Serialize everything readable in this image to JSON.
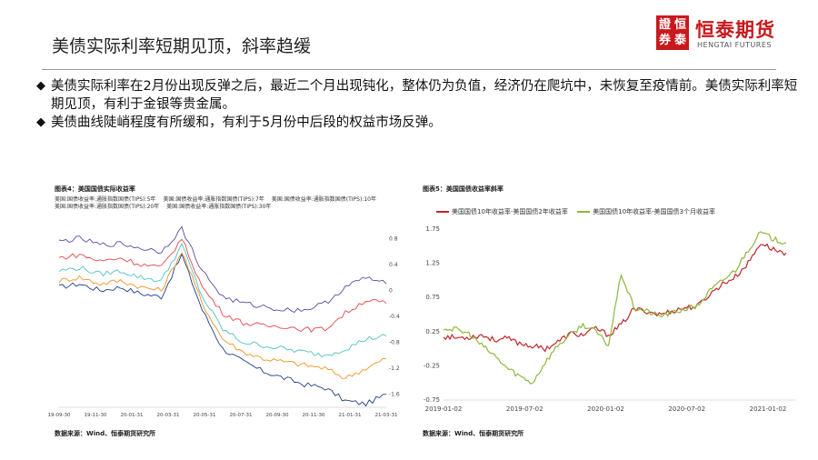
{
  "slide": {
    "title": "美债实际利率短期见顶，斜率趋缓",
    "bullets": [
      "美债实际利率在2月份出现反弹之后，最近二个月出现钝化，整体仍为负值，经济仍在爬坑中，未恢复至疫情前。美债实际利率短期见顶，有利于金银等贵金属。",
      "美债曲线陡峭程度有所缓和，有利于5月份中后段的权益市场反弹。"
    ],
    "bullet_mark": "◆"
  },
  "logo": {
    "seal_chars": [
      "證",
      "恒",
      "券",
      "泰"
    ],
    "name": "恒泰期货",
    "sub": "HENGTAI FUTURES",
    "color": "#c8191d"
  },
  "chart_data": [
    {
      "type": "line",
      "title": "图表4：美国国债实际收益率",
      "source": "数据来源：Wind、恒泰期货研究所",
      "legend": [
        "美国:国债收益率:通胀指数国债(TIPS):5年",
        "美国:国债收益率:通胀指数国债(TIPS):7年",
        "美国:国债收益率:通胀指数国债(TIPS):10年",
        "美国:国债收益率:通胀指数国债(TIPS):20年",
        "美国:国债收益率:通胀指数国债(TIPS):30年"
      ],
      "x_ticks": [
        "19-09-30",
        "19-11-30",
        "20-01-31",
        "20-03-31",
        "20-05-31",
        "20-07-31",
        "20-09-30",
        "20-11-30",
        "21-01-31",
        "21-03-31"
      ],
      "y_right_ticks": [
        "0.8",
        "0.4",
        "0",
        "-0.4",
        "-0.8",
        "-1.2",
        "-1.6"
      ],
      "y_right_range": [
        -1.8,
        1.0
      ],
      "series": [
        {
          "color": "#1f3c88",
          "values": [
            0.05,
            0.1,
            0.0,
            0.05,
            -0.05,
            -0.1,
            0.55,
            -0.3,
            -0.9,
            -1.1,
            -1.25,
            -1.35,
            -1.45,
            -1.5,
            -1.7,
            -1.75,
            -1.6
          ]
        },
        {
          "color": "#f29222",
          "values": [
            0.15,
            0.2,
            0.1,
            0.15,
            0.05,
            0.0,
            0.6,
            -0.2,
            -0.75,
            -0.95,
            -1.05,
            -1.1,
            -1.15,
            -1.2,
            -1.35,
            -1.2,
            -1.05
          ]
        },
        {
          "color": "#4fc2c2",
          "values": [
            0.3,
            0.35,
            0.25,
            0.3,
            0.2,
            0.15,
            0.7,
            -0.1,
            -0.6,
            -0.8,
            -0.85,
            -0.9,
            -0.95,
            -1.0,
            -0.9,
            -0.75,
            -0.7
          ]
        },
        {
          "color": "#e2474b",
          "values": [
            0.5,
            0.55,
            0.45,
            0.5,
            0.4,
            0.35,
            0.8,
            0.05,
            -0.35,
            -0.5,
            -0.55,
            -0.55,
            -0.6,
            -0.6,
            -0.35,
            -0.15,
            -0.2
          ]
        },
        {
          "color": "#5a4ea0",
          "values": [
            0.75,
            0.8,
            0.7,
            0.72,
            0.65,
            0.6,
            0.95,
            0.3,
            -0.1,
            -0.2,
            -0.25,
            -0.3,
            -0.3,
            -0.2,
            0.05,
            0.2,
            0.1
          ]
        }
      ]
    },
    {
      "type": "line",
      "title": "图表5：美国国债收益率斜率",
      "source": "数据来源：Wind、恒泰期货研究所",
      "series_names": [
        "美国国债10年收益率-美国国债2年收益率",
        "美国国债10年收益率-美国国债3个月收益率"
      ],
      "x_ticks": [
        "2019-01-02",
        "2019-07-02",
        "2020-01-02",
        "2020-07-02",
        "2021-01-02"
      ],
      "y_ticks": [
        "1.75",
        "1.25",
        "0.75",
        "0.25",
        "-0.25",
        "-0.75"
      ],
      "ylim": [
        -0.75,
        1.75
      ],
      "series": [
        {
          "name": "美国国债10年收益率-美国国债2年收益率",
          "color": "#c0272d",
          "values": [
            0.18,
            0.16,
            0.17,
            0.2,
            0.13,
            0.15,
            0.08,
            0.04,
            0.0,
            0.1,
            0.22,
            0.2,
            0.3,
            0.2,
            0.35,
            0.58,
            0.55,
            0.5,
            0.55,
            0.6,
            0.62,
            0.8,
            0.95,
            1.05,
            1.25,
            1.55,
            1.45,
            1.4
          ]
        },
        {
          "name": "美国国债10年收益率-美国国债3个月收益率",
          "color": "#8db83b",
          "values": [
            0.3,
            0.28,
            0.22,
            0.05,
            -0.1,
            -0.28,
            -0.4,
            -0.5,
            -0.2,
            0.05,
            0.2,
            0.35,
            0.25,
            0.05,
            1.1,
            0.6,
            0.55,
            0.48,
            0.52,
            0.58,
            0.62,
            0.85,
            1.0,
            1.15,
            1.45,
            1.7,
            1.6,
            1.55
          ]
        }
      ]
    }
  ]
}
